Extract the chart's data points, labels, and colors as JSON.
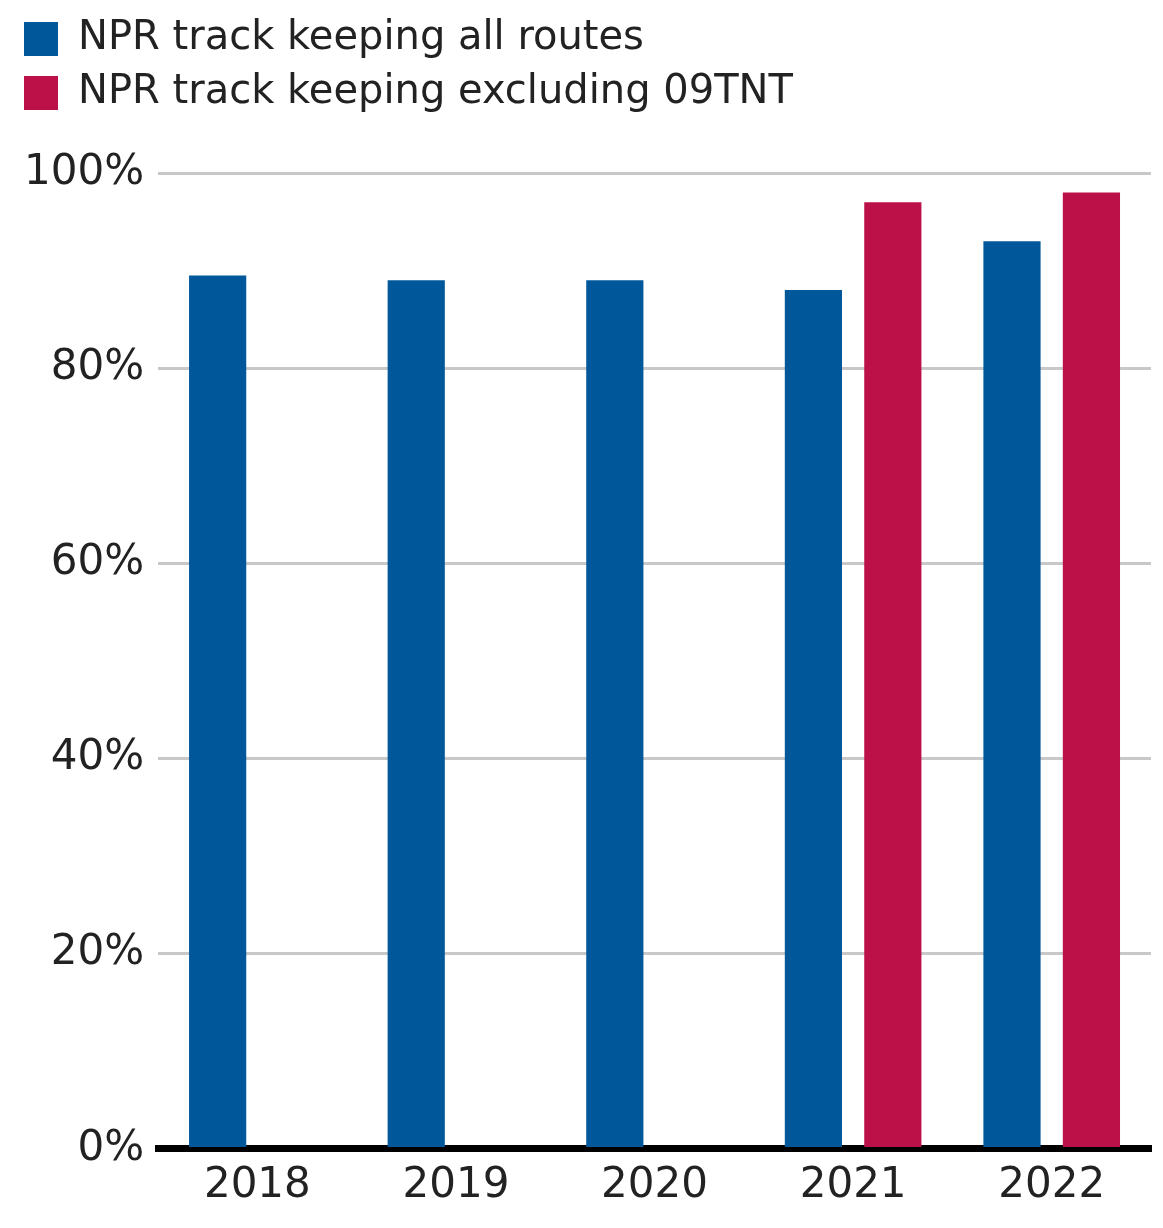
{
  "chart_data": {
    "type": "bar",
    "categories": [
      "2018",
      "2019",
      "2020",
      "2021",
      "2022"
    ],
    "series": [
      {
        "name": "NPR track keeping all routes",
        "color": "#00589a",
        "values": [
          89.5,
          89,
          89,
          88,
          93
        ]
      },
      {
        "name": "NPR track keeping excluding 09TNT",
        "color": "#bb1048",
        "values": [
          null,
          null,
          null,
          97,
          98
        ]
      }
    ],
    "ylim": [
      0,
      100
    ],
    "yticks": [
      {
        "value": 0,
        "label": "0%"
      },
      {
        "value": 20,
        "label": "20%"
      },
      {
        "value": 40,
        "label": "40%"
      },
      {
        "value": 60,
        "label": "60%"
      },
      {
        "value": 80,
        "label": "80%"
      },
      {
        "value": 100,
        "label": "100%"
      }
    ],
    "grid": "y",
    "legend": "top left"
  }
}
